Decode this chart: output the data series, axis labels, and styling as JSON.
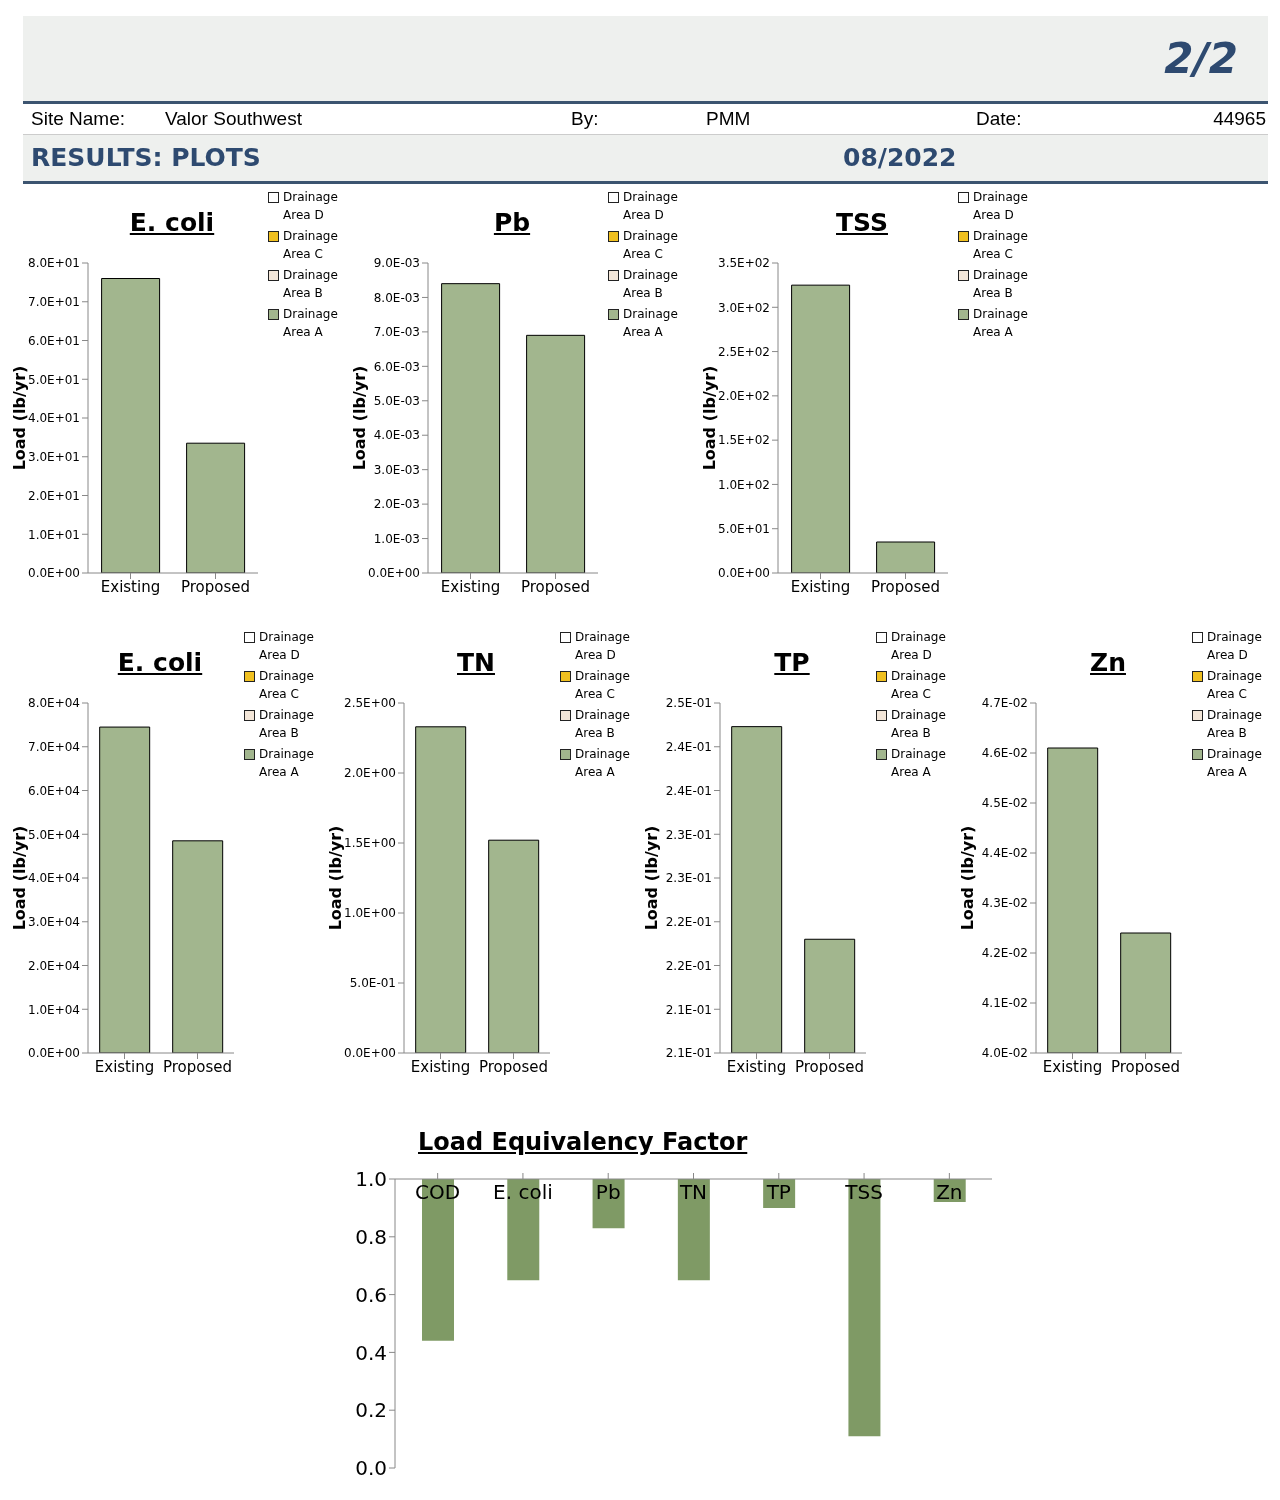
{
  "chart_data": [
    {
      "type": "other",
      "title": "RESULTS: PLOTS",
      "annotations": [
        "2/2",
        "Site Name:",
        "Valor Southwest",
        "By:",
        "PMM",
        "Date:",
        "44965",
        "08/2022"
      ]
    },
    {
      "type": "bar",
      "title": "E. coli",
      "ylabel": "Load (lb/yr)",
      "categories": [
        "Existing",
        "Proposed"
      ],
      "stacked": true,
      "legend": "top right",
      "grid": false,
      "series": [
        {
          "name": "Drainage Area A",
          "color": "#a2b68e",
          "values": [
            76,
            33.5
          ]
        },
        {
          "name": "Drainage Area B",
          "color": "#f3e6d8",
          "values": [
            0,
            0
          ]
        },
        {
          "name": "Drainage Area C",
          "color": "#f0c020",
          "values": [
            0,
            0
          ]
        },
        {
          "name": "Drainage Area D",
          "color": "#ffffff",
          "values": [
            0,
            0
          ]
        }
      ],
      "ylim": [
        0,
        80
      ],
      "yticks": [
        {
          "value": 0,
          "label": "0.0E+00"
        },
        {
          "value": 10,
          "label": "1.0E+01"
        },
        {
          "value": 20,
          "label": "2.0E+01"
        },
        {
          "value": 30,
          "label": "3.0E+01"
        },
        {
          "value": 40,
          "label": "4.0E+01"
        },
        {
          "value": 50,
          "label": "5.0E+01"
        },
        {
          "value": 60,
          "label": "6.0E+01"
        },
        {
          "value": 70,
          "label": "7.0E+01"
        },
        {
          "value": 80,
          "label": "8.0E+01"
        }
      ]
    },
    {
      "type": "bar",
      "title": "Pb",
      "ylabel": "Load (lb/yr)",
      "categories": [
        "Existing",
        "Proposed"
      ],
      "stacked": true,
      "legend": "top right",
      "grid": false,
      "series": [
        {
          "name": "Drainage Area A",
          "color": "#a2b68e",
          "values": [
            0.0084,
            0.0069
          ]
        },
        {
          "name": "Drainage Area B",
          "color": "#f3e6d8",
          "values": [
            null,
            null
          ]
        },
        {
          "name": "Drainage Area C",
          "color": "#f0c020",
          "values": [
            null,
            null
          ]
        },
        {
          "name": "Drainage Area D",
          "color": "#ffffff",
          "values": [
            null,
            null
          ]
        }
      ],
      "ylim": [
        0,
        0.009
      ],
      "yticks": [
        {
          "value": 0,
          "label": "0.0E+00"
        },
        {
          "value": 0.001,
          "label": "1.0E-03"
        },
        {
          "value": 0.002,
          "label": "2.0E-03"
        },
        {
          "value": 0.003,
          "label": "3.0E-03"
        },
        {
          "value": 0.004,
          "label": "4.0E-03"
        },
        {
          "value": 0.005,
          "label": "5.0E-03"
        },
        {
          "value": 0.006,
          "label": "6.0E-03"
        },
        {
          "value": 0.007,
          "label": "7.0E-03"
        },
        {
          "value": 0.008,
          "label": "8.0E-03"
        },
        {
          "value": 0.009,
          "label": "9.0E-03"
        }
      ]
    },
    {
      "type": "bar",
      "title": "TSS",
      "ylabel": "Load (lb/yr)",
      "categories": [
        "Existing",
        "Proposed"
      ],
      "stacked": true,
      "legend": "top right",
      "grid": false,
      "series": [
        {
          "name": "Drainage Area A",
          "color": "#a2b68e",
          "values": [
            325,
            35
          ]
        },
        {
          "name": "Drainage Area B",
          "color": "#f3e6d8",
          "values": [
            0,
            0
          ]
        },
        {
          "name": "Drainage Area C",
          "color": "#f0c020",
          "values": [
            0,
            0
          ]
        },
        {
          "name": "Drainage Area D",
          "color": "#ffffff",
          "values": [
            0,
            0
          ]
        }
      ],
      "ylim": [
        0,
        350
      ],
      "yticks": [
        {
          "value": 0,
          "label": "0.0E+00"
        },
        {
          "value": 50,
          "label": "5.0E+01"
        },
        {
          "value": 100,
          "label": "1.0E+02"
        },
        {
          "value": 150,
          "label": "1.5E+02"
        },
        {
          "value": 200,
          "label": "2.0E+02"
        },
        {
          "value": 250,
          "label": "2.5E+02"
        },
        {
          "value": 300,
          "label": "3.0E+02"
        },
        {
          "value": 350,
          "label": "3.5E+02"
        }
      ]
    },
    {
      "type": "bar",
      "title": "E. coli",
      "ylabel": "Load (lb/yr)",
      "categories": [
        "Existing",
        "Proposed"
      ],
      "stacked": true,
      "legend": "top right",
      "grid": false,
      "series": [
        {
          "name": "Drainage Area A",
          "color": "#a2b68e",
          "values": [
            74500,
            48500
          ]
        },
        {
          "name": "Drainage Area B",
          "color": "#f3e6d8",
          "values": [
            null,
            null
          ]
        },
        {
          "name": "Drainage Area C",
          "color": "#f0c020",
          "values": [
            null,
            null
          ]
        },
        {
          "name": "Drainage Area D",
          "color": "#ffffff",
          "values": [
            null,
            null
          ]
        }
      ],
      "ylim": [
        0,
        80000
      ],
      "yticks": [
        {
          "value": 0,
          "label": "0.0E+00"
        },
        {
          "value": 10000,
          "label": "1.0E+04"
        },
        {
          "value": 20000,
          "label": "2.0E+04"
        },
        {
          "value": 30000,
          "label": "3.0E+04"
        },
        {
          "value": 40000,
          "label": "4.0E+04"
        },
        {
          "value": 50000,
          "label": "5.0E+04"
        },
        {
          "value": 60000,
          "label": "6.0E+04"
        },
        {
          "value": 70000,
          "label": "7.0E+04"
        },
        {
          "value": 80000,
          "label": "8.0E+04"
        }
      ]
    },
    {
      "type": "bar",
      "title": "TN",
      "ylabel": "Load (lb/yr)",
      "categories": [
        "Existing",
        "Proposed"
      ],
      "stacked": true,
      "legend": "top right",
      "grid": false,
      "series": [
        {
          "name": "Drainage Area A",
          "color": "#a2b68e",
          "values": [
            2.33,
            1.52
          ]
        },
        {
          "name": "Drainage Area B",
          "color": "#f3e6d8",
          "values": [
            null,
            null
          ]
        },
        {
          "name": "Drainage Area C",
          "color": "#f0c020",
          "values": [
            null,
            null
          ]
        },
        {
          "name": "Drainage Area D",
          "color": "#ffffff",
          "values": [
            null,
            null
          ]
        }
      ],
      "ylim": [
        0,
        2.5
      ],
      "yticks": [
        {
          "value": 0,
          "label": "0.0E+00"
        },
        {
          "value": 0.5,
          "label": "5.0E-01"
        },
        {
          "value": 1,
          "label": "1.0E+00"
        },
        {
          "value": 1.5,
          "label": "1.5E+00"
        },
        {
          "value": 2,
          "label": "2.0E+00"
        },
        {
          "value": 2.5,
          "label": "2.5E+00"
        }
      ]
    },
    {
      "type": "bar",
      "title": "TP",
      "ylabel": "Load (lb/yr)",
      "categories": [
        "Existing",
        "Proposed"
      ],
      "stacked": true,
      "legend": "top right",
      "grid": false,
      "series": [
        {
          "name": "Drainage Area A",
          "color": "#a2b68e",
          "values": [
            0.2473,
            0.223
          ]
        },
        {
          "name": "Drainage Area B",
          "color": "#f3e6d8",
          "values": [
            null,
            null
          ]
        },
        {
          "name": "Drainage Area C",
          "color": "#f0c020",
          "values": [
            null,
            null
          ]
        },
        {
          "name": "Drainage Area D",
          "color": "#ffffff",
          "values": [
            null,
            null
          ]
        }
      ],
      "ylim": [
        0.21,
        0.25
      ],
      "yticks": [
        {
          "value": 0.21,
          "label": "2.1E-01"
        },
        {
          "value": 0.215,
          "label": "2.1E-01"
        },
        {
          "value": 0.22,
          "label": "2.2E-01"
        },
        {
          "value": 0.225,
          "label": "2.2E-01"
        },
        {
          "value": 0.23,
          "label": "2.3E-01"
        },
        {
          "value": 0.235,
          "label": "2.3E-01"
        },
        {
          "value": 0.24,
          "label": "2.4E-01"
        },
        {
          "value": 0.245,
          "label": "2.4E-01"
        },
        {
          "value": 0.25,
          "label": "2.5E-01"
        }
      ]
    },
    {
      "type": "bar",
      "title": "Zn",
      "ylabel": "Load (lb/yr)",
      "categories": [
        "Existing",
        "Proposed"
      ],
      "stacked": true,
      "legend": "top right",
      "grid": false,
      "series": [
        {
          "name": "Drainage Area A",
          "color": "#a2b68e",
          "values": [
            0.0461,
            0.0424
          ]
        },
        {
          "name": "Drainage Area B",
          "color": "#f3e6d8",
          "values": [
            null,
            null
          ]
        },
        {
          "name": "Drainage Area C",
          "color": "#f0c020",
          "values": [
            null,
            null
          ]
        },
        {
          "name": "Drainage Area D",
          "color": "#ffffff",
          "values": [
            null,
            null
          ]
        }
      ],
      "ylim": [
        0.04,
        0.047
      ],
      "yticks": [
        {
          "value": 0.04,
          "label": "4.0E-02"
        },
        {
          "value": 0.041,
          "label": "4.1E-02"
        },
        {
          "value": 0.042,
          "label": "4.2E-02"
        },
        {
          "value": 0.043,
          "label": "4.3E-02"
        },
        {
          "value": 0.044,
          "label": "4.4E-02"
        },
        {
          "value": 0.045,
          "label": "4.5E-02"
        },
        {
          "value": 0.046,
          "label": "4.6E-02"
        },
        {
          "value": 0.047,
          "label": "4.7E-02"
        }
      ]
    },
    {
      "type": "bar",
      "title": "Load Equivalency Factor",
      "categories": [
        "COD",
        "E. coli",
        "Pb",
        "TN",
        "TP",
        "TSS",
        "Zn"
      ],
      "base": [
        1,
        1,
        1,
        1,
        1,
        1,
        1
      ],
      "values": [
        -0.56,
        -0.35,
        -0.17,
        -0.35,
        -0.1,
        -0.89,
        -0.08
      ],
      "color": "#7f9a65",
      "grid": false,
      "ylim": [
        0,
        1
      ],
      "yticks": [
        {
          "value": 0,
          "label": "0.0"
        },
        {
          "value": 0.2,
          "label": "0.2"
        },
        {
          "value": 0.4,
          "label": "0.4"
        },
        {
          "value": 0.6,
          "label": "0.6"
        },
        {
          "value": 0.8,
          "label": "0.8"
        },
        {
          "value": 1,
          "label": "1.0"
        }
      ]
    }
  ]
}
